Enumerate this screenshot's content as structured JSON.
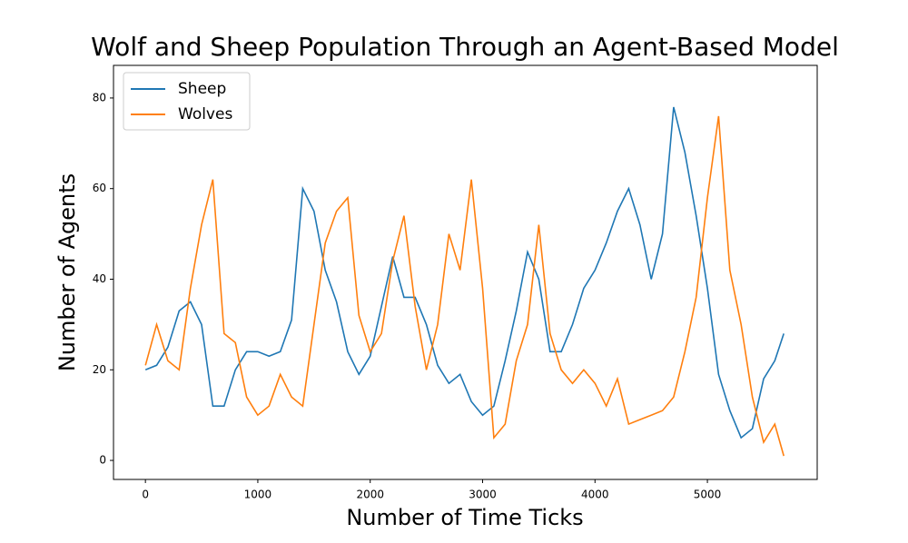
{
  "chart_data": {
    "type": "line",
    "title": "Wolf and Sheep Population Through an Agent-Based Model",
    "x_label": "Number of Time Ticks",
    "y_label": "Number of Agents",
    "x": [
      0,
      100,
      200,
      300,
      400,
      500,
      600,
      700,
      800,
      900,
      1000,
      1100,
      1200,
      1300,
      1400,
      1500,
      1600,
      1700,
      1800,
      1900,
      2000,
      2100,
      2200,
      2300,
      2400,
      2500,
      2600,
      2700,
      2800,
      2900,
      3000,
      3100,
      3200,
      3300,
      3400,
      3500,
      3600,
      3700,
      3800,
      3900,
      4000,
      4100,
      4200,
      4300,
      4400,
      4500,
      4600,
      4700,
      4800,
      4900,
      5000,
      5100,
      5200,
      5300,
      5400,
      5500,
      5600,
      5680
    ],
    "series": [
      {
        "name": "Sheep",
        "color": "#1f77b4",
        "values": [
          20,
          21,
          25,
          33,
          35,
          30,
          12,
          12,
          20,
          24,
          24,
          23,
          24,
          31,
          60,
          55,
          42,
          35,
          24,
          19,
          23,
          34,
          45,
          36,
          36,
          30,
          21,
          17,
          19,
          13,
          10,
          12,
          22,
          33,
          46,
          40,
          24,
          24,
          30,
          38,
          42,
          48,
          55,
          60,
          52,
          40,
          50,
          78,
          68,
          54,
          38,
          19,
          11,
          5,
          7,
          18,
          22,
          28
        ]
      },
      {
        "name": "Wolves",
        "color": "#ff7f0e",
        "values": [
          21,
          30,
          22,
          20,
          38,
          52,
          62,
          28,
          26,
          14,
          10,
          12,
          19,
          14,
          12,
          30,
          48,
          55,
          58,
          32,
          24,
          28,
          44,
          54,
          34,
          20,
          30,
          50,
          42,
          62,
          38,
          5,
          8,
          22,
          30,
          52,
          28,
          20,
          17,
          20,
          17,
          12,
          18,
          8,
          9,
          10,
          11,
          14,
          24,
          36,
          58,
          76,
          42,
          30,
          14,
          4,
          8,
          1
        ]
      }
    ],
    "xlim": [
      -284,
      5977
    ],
    "ylim": [
      -4.2,
      87.2
    ],
    "xticks": [
      0,
      1000,
      2000,
      3000,
      4000,
      5000
    ],
    "yticks": [
      0,
      20,
      40,
      60,
      80
    ],
    "legend": "upper left",
    "grid": false
  }
}
